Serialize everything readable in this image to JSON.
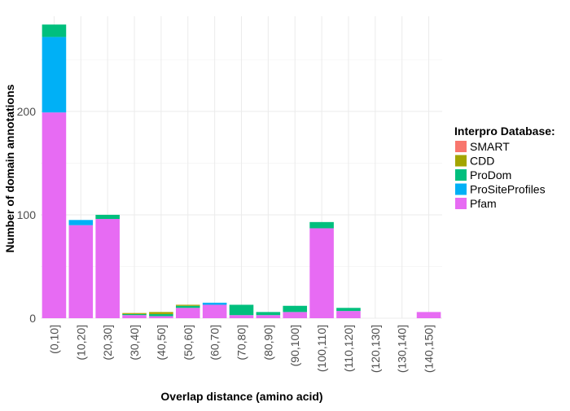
{
  "chart_data": {
    "type": "bar",
    "stacked": true,
    "title": "",
    "xlabel": "Overlap distance (amino acid)",
    "ylabel": "Number of domain annotations",
    "ylim": [
      0,
      292
    ],
    "y_ticks": [
      0,
      100,
      200
    ],
    "grid": true,
    "legend_position": "right",
    "legend_title": "Interpro Database:",
    "categories": [
      "(0,10]",
      "(10,20]",
      "(20,30]",
      "(30,40]",
      "(40,50]",
      "(50,60]",
      "(60,70]",
      "(70,80]",
      "(80,90]",
      "(90,100]",
      "(100,110]",
      "(110,120]",
      "(120,130]",
      "(130,140]",
      "(140,150]"
    ],
    "series": [
      {
        "name": "SMART",
        "color": "#F8766D",
        "values": [
          0,
          0,
          0,
          0,
          0,
          0,
          0,
          0,
          0,
          0,
          0,
          0,
          0,
          0,
          0
        ]
      },
      {
        "name": "CDD",
        "color": "#A3A500",
        "values": [
          0,
          0,
          0,
          1,
          2,
          1,
          0,
          0,
          0,
          0,
          0,
          0,
          0,
          0,
          0
        ]
      },
      {
        "name": "ProDom",
        "color": "#00BF7D",
        "values": [
          12,
          0,
          4,
          1,
          2,
          2,
          0,
          10,
          3,
          6,
          6,
          3,
          0,
          0,
          0
        ]
      },
      {
        "name": "ProSiteProfiles",
        "color": "#00B0F6",
        "values": [
          73,
          5,
          0,
          0,
          0,
          0,
          2,
          0,
          0,
          0,
          0,
          0,
          0,
          0,
          0
        ]
      },
      {
        "name": "Pfam",
        "color": "#E76BF3",
        "values": [
          199,
          90,
          96,
          3,
          2,
          10,
          13,
          3,
          3,
          6,
          87,
          7,
          0,
          0,
          6
        ]
      }
    ],
    "stack_order_bottom_to_top": [
      "Pfam",
      "ProSiteProfiles",
      "ProDom",
      "CDD",
      "SMART"
    ]
  }
}
